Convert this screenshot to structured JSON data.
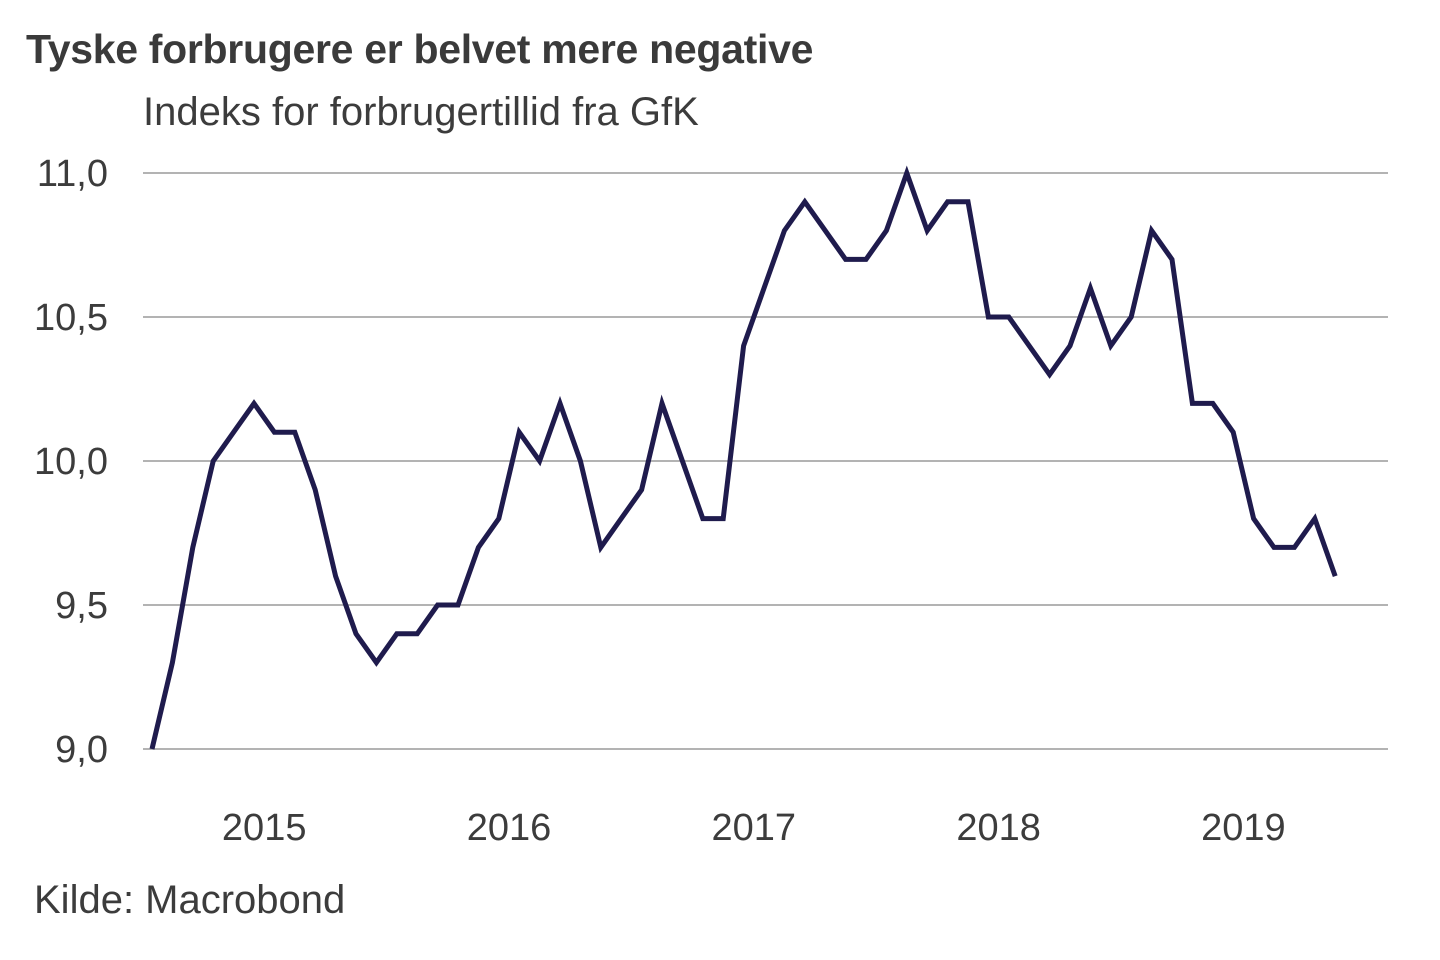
{
  "chart_data": {
    "type": "line",
    "title": "Tyske forbrugere er belvet mere negative",
    "subtitle": "Indeks for forbrugertillid fra GfK",
    "source": "Kilde: Macrobond",
    "xlabel": "",
    "ylabel": "",
    "ylim": [
      9.0,
      11.0
    ],
    "y_ticks": [
      9.0,
      9.5,
      10.0,
      10.5,
      11.0
    ],
    "y_tick_labels": [
      "9,0",
      "9,5",
      "10,0",
      "10,5",
      "11,0"
    ],
    "x_tick_labels": [
      "2015",
      "2016",
      "2017",
      "2018",
      "2019"
    ],
    "x_tick_index": [
      5.5,
      17.5,
      29.5,
      41.5,
      53.5
    ],
    "frequency": "monthly",
    "grid": true,
    "legend": "none",
    "series": [
      {
        "name": "GfK forbrugertillid",
        "color": "#1f1b4d",
        "values": [
          9.0,
          9.3,
          9.7,
          10.0,
          10.1,
          10.2,
          10.1,
          10.1,
          9.9,
          9.6,
          9.4,
          9.3,
          9.4,
          9.4,
          9.5,
          9.5,
          9.7,
          9.8,
          10.1,
          10.0,
          10.2,
          10.0,
          9.7,
          9.8,
          9.9,
          10.2,
          10.0,
          9.8,
          9.8,
          10.4,
          10.6,
          10.8,
          10.9,
          10.8,
          10.7,
          10.7,
          10.8,
          11.0,
          10.8,
          10.9,
          10.9,
          10.5,
          10.5,
          10.4,
          10.3,
          10.4,
          10.6,
          10.4,
          10.5,
          10.8,
          10.7,
          10.2,
          10.2,
          10.1,
          9.8,
          9.7,
          9.7,
          9.8,
          9.6
        ]
      }
    ]
  }
}
